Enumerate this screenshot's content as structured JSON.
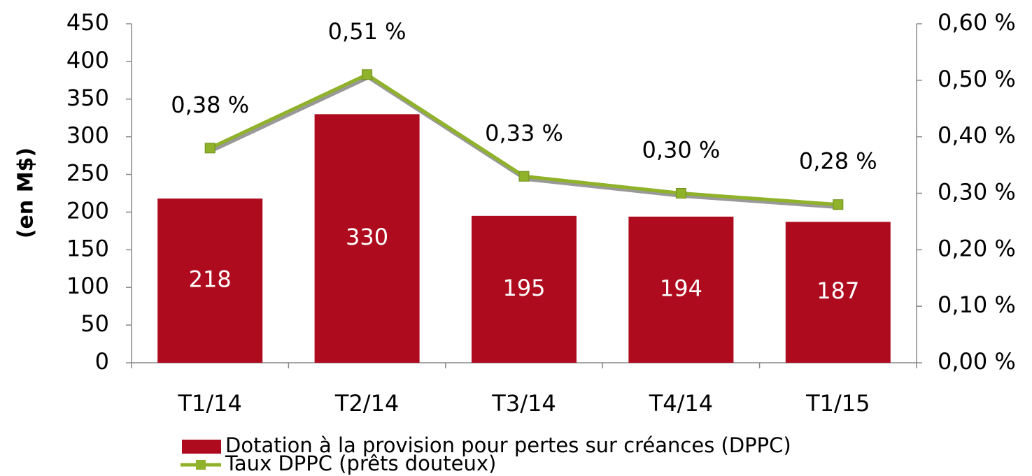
{
  "chart_data": {
    "type": "bar",
    "ylabel": "(en M$)",
    "categories": [
      "T1/14",
      "T2/14",
      "T3/14",
      "T4/14",
      "T1/15"
    ],
    "series": [
      {
        "name": "Dotation à la provision pour pertes sur créances (DPPC)",
        "type": "bar",
        "color": "#ae0c1e",
        "values": [
          218,
          330,
          195,
          194,
          187
        ]
      },
      {
        "name": "Taux DPPC (prêts douteux)",
        "type": "line",
        "axis": "y2",
        "color": "#8fb22a",
        "values": [
          0.38,
          0.51,
          0.33,
          0.3,
          0.28
        ],
        "value_labels": [
          "0,38 %",
          "0,51 %",
          "0,33 %",
          "0,30 %",
          "0,28 %"
        ]
      }
    ],
    "ylim": [
      0,
      450
    ],
    "yticks": [
      0,
      50,
      100,
      150,
      200,
      250,
      300,
      350,
      400,
      450
    ],
    "y2lim": [
      0,
      0.6
    ],
    "y2ticks": [
      {
        "value": 0,
        "label": "0,00 %"
      },
      {
        "value": 0.1,
        "label": "0,10 %"
      },
      {
        "value": 0.2,
        "label": "0,20 %"
      },
      {
        "value": 0.3,
        "label": "0,30 %"
      },
      {
        "value": 0.4,
        "label": "0,40 %"
      },
      {
        "value": 0.5,
        "label": "0,50 %"
      },
      {
        "value": 0.6,
        "label": "0,60 %"
      }
    ],
    "legend": "bottom"
  }
}
